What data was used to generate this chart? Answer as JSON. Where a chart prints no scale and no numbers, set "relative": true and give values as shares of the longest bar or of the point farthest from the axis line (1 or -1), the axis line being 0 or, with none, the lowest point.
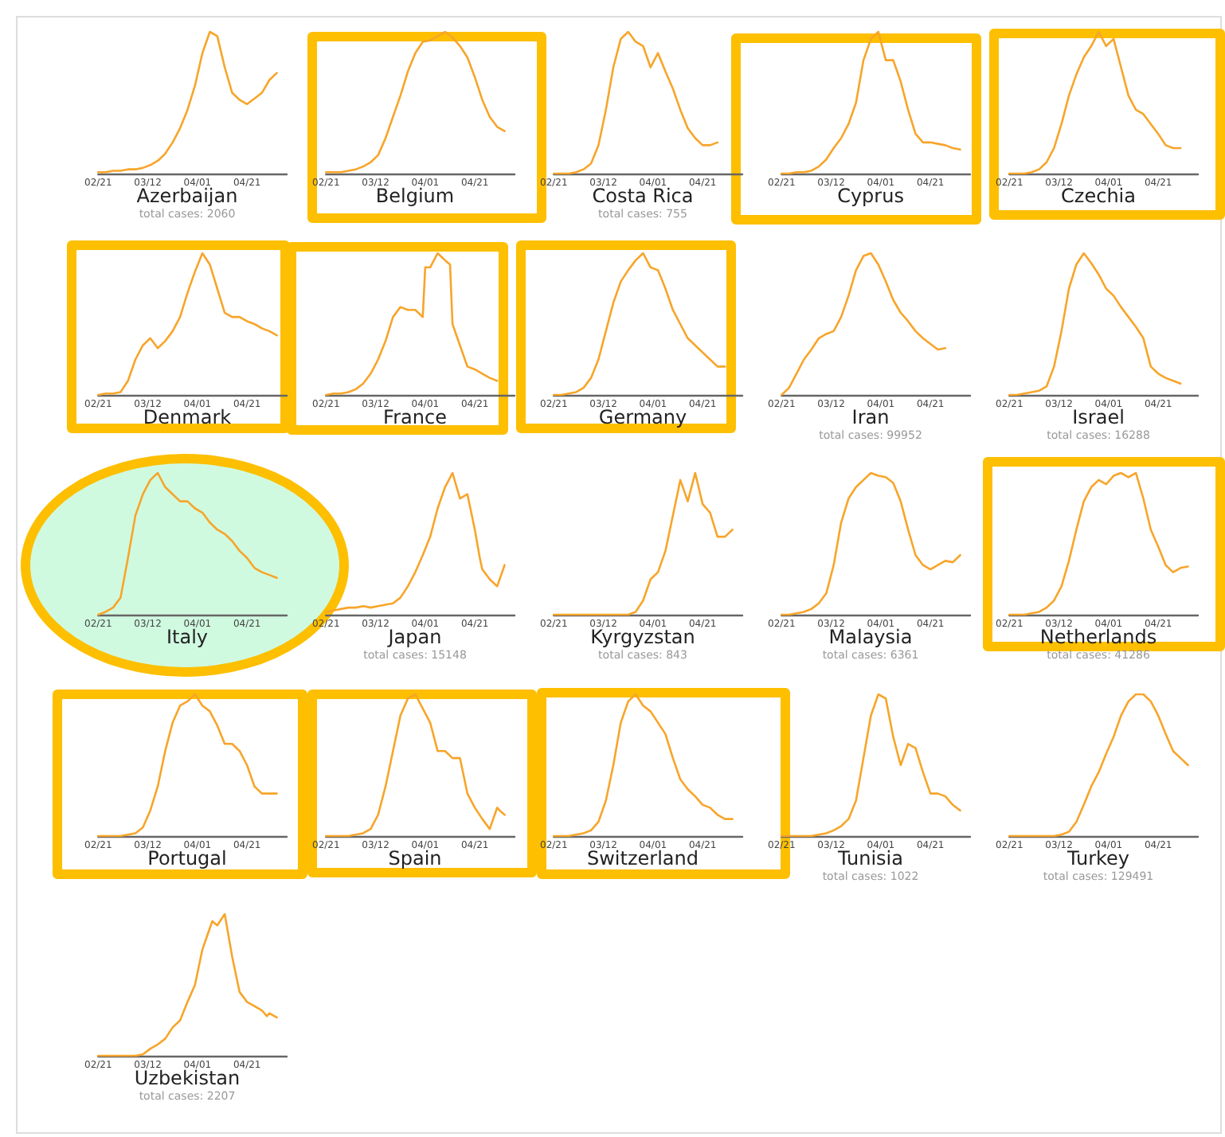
{
  "chart_data": [
    {
      "type": "line",
      "title": "Azerbaijan",
      "subtitle": "total cases: 2060",
      "relative": true,
      "tick_labels": "x",
      "xlim": [
        "--02-21",
        "--05-07"
      ],
      "xticks": [
        {
          "value": "--02-21",
          "label": "02/21"
        },
        {
          "value": "--03-12",
          "label": "03/12"
        },
        {
          "value": "--04-01",
          "label": "04/01"
        },
        {
          "value": "--04-21",
          "label": "04/21"
        }
      ],
      "color": "#f7a52a",
      "x": [
        "--02-21",
        "--02-24",
        "--02-27",
        "--03-01",
        "--03-04",
        "--03-07",
        "--03-10",
        "--03-13",
        "--03-16",
        "--03-19",
        "--03-22",
        "--03-25",
        "--03-28",
        "--03-31",
        "--04-03",
        "--04-06",
        "--04-09",
        "--04-12",
        "--04-15",
        "--04-18",
        "--04-21",
        "--04-24",
        "--04-27",
        "--04-30",
        "--05-03"
      ],
      "values": [
        0.01,
        0.01,
        0.02,
        0.02,
        0.03,
        0.03,
        0.04,
        0.06,
        0.09,
        0.14,
        0.22,
        0.32,
        0.45,
        0.62,
        0.85,
        1.0,
        0.97,
        0.75,
        0.57,
        0.52,
        0.49,
        0.53,
        0.57,
        0.66,
        0.71
      ]
    },
    {
      "type": "line",
      "title": "Belgium",
      "relative": true,
      "tick_labels": "x",
      "xlim": [
        "--02-21",
        "--05-07"
      ],
      "xticks": [
        {
          "value": "--02-21",
          "label": "02/21"
        },
        {
          "value": "--03-12",
          "label": "03/12"
        },
        {
          "value": "--04-01",
          "label": "04/01"
        },
        {
          "value": "--04-21",
          "label": "04/21"
        }
      ],
      "color": "#f7a52a",
      "x": [
        "--02-21",
        "--02-24",
        "--02-27",
        "--03-01",
        "--03-04",
        "--03-07",
        "--03-10",
        "--03-13",
        "--03-16",
        "--03-19",
        "--03-22",
        "--03-25",
        "--03-28",
        "--03-31",
        "--04-03",
        "--04-06",
        "--04-09",
        "--04-12",
        "--04-15",
        "--04-18",
        "--04-21",
        "--04-24",
        "--04-27",
        "--04-30",
        "--05-03"
      ],
      "values": [
        0.01,
        0.01,
        0.01,
        0.02,
        0.03,
        0.05,
        0.08,
        0.13,
        0.25,
        0.4,
        0.55,
        0.72,
        0.85,
        0.93,
        0.94,
        0.97,
        1.0,
        0.96,
        0.9,
        0.82,
        0.68,
        0.52,
        0.4,
        0.33,
        0.3
      ]
    },
    {
      "type": "line",
      "title": "Costa Rica",
      "subtitle": "total cases: 755",
      "relative": true,
      "tick_labels": "x",
      "xlim": [
        "--02-21",
        "--05-07"
      ],
      "xticks": [
        {
          "value": "--02-21",
          "label": "02/21"
        },
        {
          "value": "--03-12",
          "label": "03/12"
        },
        {
          "value": "--04-01",
          "label": "04/01"
        },
        {
          "value": "--04-21",
          "label": "04/21"
        }
      ],
      "color": "#f7a52a",
      "x": [
        "--02-21",
        "--02-24",
        "--02-27",
        "--03-01",
        "--03-04",
        "--03-07",
        "--03-10",
        "--03-13",
        "--03-16",
        "--03-19",
        "--03-22",
        "--03-25",
        "--03-28",
        "--03-31",
        "--04-03",
        "--04-06",
        "--04-09",
        "--04-12",
        "--04-15",
        "--04-18",
        "--04-21",
        "--04-24",
        "--04-27"
      ],
      "values": [
        0,
        0,
        0,
        0.01,
        0.03,
        0.07,
        0.2,
        0.45,
        0.75,
        0.95,
        1.0,
        0.93,
        0.9,
        0.75,
        0.85,
        0.72,
        0.6,
        0.45,
        0.32,
        0.25,
        0.2,
        0.2,
        0.22
      ]
    },
    {
      "type": "line",
      "title": "Cyprus",
      "relative": true,
      "tick_labels": "x",
      "xlim": [
        "--02-21",
        "--05-07"
      ],
      "xticks": [
        {
          "value": "--02-21",
          "label": "02/21"
        },
        {
          "value": "--03-12",
          "label": "03/12"
        },
        {
          "value": "--04-01",
          "label": "04/01"
        },
        {
          "value": "--04-21",
          "label": "04/21"
        }
      ],
      "color": "#f7a52a",
      "x": [
        "--02-21",
        "--02-24",
        "--02-27",
        "--03-01",
        "--03-04",
        "--03-07",
        "--03-10",
        "--03-13",
        "--03-16",
        "--03-19",
        "--03-22",
        "--03-25",
        "--03-28",
        "--03-31",
        "--04-03",
        "--04-06",
        "--04-09",
        "--04-12",
        "--04-15",
        "--04-18",
        "--04-21",
        "--04-24",
        "--04-27",
        "--04-30",
        "--05-03"
      ],
      "values": [
        0,
        0,
        0.01,
        0.01,
        0.02,
        0.05,
        0.1,
        0.18,
        0.25,
        0.35,
        0.5,
        0.8,
        0.95,
        1.0,
        0.8,
        0.8,
        0.65,
        0.45,
        0.28,
        0.22,
        0.22,
        0.21,
        0.2,
        0.18,
        0.17
      ]
    },
    {
      "type": "line",
      "title": "Czechia",
      "relative": true,
      "tick_labels": "x",
      "xlim": [
        "--02-21",
        "--05-07"
      ],
      "xticks": [
        {
          "value": "--02-21",
          "label": "02/21"
        },
        {
          "value": "--03-12",
          "label": "03/12"
        },
        {
          "value": "--04-01",
          "label": "04/01"
        },
        {
          "value": "--04-21",
          "label": "04/21"
        }
      ],
      "color": "#f7a52a",
      "x": [
        "--02-21",
        "--02-24",
        "--02-27",
        "--03-01",
        "--03-04",
        "--03-07",
        "--03-10",
        "--03-13",
        "--03-16",
        "--03-19",
        "--03-22",
        "--03-25",
        "--03-28",
        "--03-31",
        "--04-03",
        "--04-06",
        "--04-09",
        "--04-12",
        "--04-15",
        "--04-18",
        "--04-21",
        "--04-24",
        "--04-27",
        "--04-30"
      ],
      "values": [
        0,
        0,
        0,
        0.01,
        0.03,
        0.08,
        0.18,
        0.35,
        0.55,
        0.7,
        0.82,
        0.9,
        1.0,
        0.9,
        0.95,
        0.75,
        0.55,
        0.45,
        0.42,
        0.35,
        0.28,
        0.2,
        0.18,
        0.18
      ]
    },
    {
      "type": "line",
      "title": "Denmark",
      "relative": true,
      "tick_labels": "x",
      "xlim": [
        "--02-21",
        "--05-07"
      ],
      "xticks": [
        {
          "value": "--02-21",
          "label": "02/21"
        },
        {
          "value": "--03-12",
          "label": "03/12"
        },
        {
          "value": "--04-01",
          "label": "04/01"
        },
        {
          "value": "--04-21",
          "label": "04/21"
        }
      ],
      "color": "#f7a52a",
      "x": [
        "--02-21",
        "--02-24",
        "--02-27",
        "--03-01",
        "--03-04",
        "--03-07",
        "--03-10",
        "--03-13",
        "--03-16",
        "--03-19",
        "--03-22",
        "--03-25",
        "--03-28",
        "--03-31",
        "--04-03",
        "--04-06",
        "--04-09",
        "--04-12",
        "--04-15",
        "--04-18",
        "--04-21",
        "--04-24",
        "--04-27",
        "--04-30",
        "--05-03"
      ],
      "values": [
        0,
        0.01,
        0.01,
        0.02,
        0.1,
        0.25,
        0.35,
        0.4,
        0.33,
        0.38,
        0.45,
        0.55,
        0.72,
        0.87,
        1.0,
        0.92,
        0.75,
        0.58,
        0.55,
        0.55,
        0.52,
        0.5,
        0.47,
        0.45,
        0.42
      ]
    },
    {
      "type": "line",
      "title": "France",
      "relative": true,
      "tick_labels": "x",
      "xlim": [
        "--02-21",
        "--05-07"
      ],
      "xticks": [
        {
          "value": "--02-21",
          "label": "02/21"
        },
        {
          "value": "--03-12",
          "label": "03/12"
        },
        {
          "value": "--04-01",
          "label": "04/01"
        },
        {
          "value": "--04-21",
          "label": "04/21"
        }
      ],
      "color": "#f7a52a",
      "x": [
        "--02-21",
        "--02-24",
        "--02-27",
        "--03-01",
        "--03-04",
        "--03-07",
        "--03-10",
        "--03-13",
        "--03-16",
        "--03-19",
        "--03-22",
        "--03-25",
        "--03-28",
        "--03-31",
        "--04-01",
        "--04-03",
        "--04-06",
        "--04-09",
        "--04-11",
        "--04-12",
        "--04-15",
        "--04-18",
        "--04-21",
        "--04-24",
        "--04-27",
        "--04-30"
      ],
      "values": [
        0,
        0.01,
        0.01,
        0.02,
        0.04,
        0.08,
        0.15,
        0.25,
        0.38,
        0.55,
        0.62,
        0.6,
        0.6,
        0.55,
        0.9,
        0.9,
        1.0,
        0.95,
        0.92,
        0.5,
        0.35,
        0.2,
        0.18,
        0.15,
        0.12,
        0.1
      ]
    },
    {
      "type": "line",
      "title": "Germany",
      "relative": true,
      "tick_labels": "x",
      "xlim": [
        "--02-21",
        "--05-07"
      ],
      "xticks": [
        {
          "value": "--02-21",
          "label": "02/21"
        },
        {
          "value": "--03-12",
          "label": "03/12"
        },
        {
          "value": "--04-01",
          "label": "04/01"
        },
        {
          "value": "--04-21",
          "label": "04/21"
        }
      ],
      "color": "#f7a52a",
      "x": [
        "--02-21",
        "--02-24",
        "--02-27",
        "--03-01",
        "--03-04",
        "--03-07",
        "--03-10",
        "--03-13",
        "--03-16",
        "--03-19",
        "--03-22",
        "--03-25",
        "--03-28",
        "--03-31",
        "--04-03",
        "--04-06",
        "--04-09",
        "--04-12",
        "--04-15",
        "--04-18",
        "--04-21",
        "--04-24",
        "--04-27",
        "--04-30"
      ],
      "values": [
        0,
        0,
        0.01,
        0.02,
        0.05,
        0.12,
        0.25,
        0.45,
        0.65,
        0.8,
        0.88,
        0.95,
        1.0,
        0.9,
        0.88,
        0.75,
        0.6,
        0.5,
        0.4,
        0.35,
        0.3,
        0.25,
        0.2,
        0.2
      ]
    },
    {
      "type": "line",
      "title": "Iran",
      "subtitle": "total cases: 99952",
      "relative": true,
      "tick_labels": "x",
      "xlim": [
        "--02-21",
        "--05-07"
      ],
      "xticks": [
        {
          "value": "--02-21",
          "label": "02/21"
        },
        {
          "value": "--03-12",
          "label": "03/12"
        },
        {
          "value": "--04-01",
          "label": "04/01"
        },
        {
          "value": "--04-21",
          "label": "04/21"
        }
      ],
      "color": "#f7a52a",
      "x": [
        "--02-21",
        "--02-24",
        "--02-27",
        "--03-01",
        "--03-04",
        "--03-07",
        "--03-10",
        "--03-13",
        "--03-16",
        "--03-19",
        "--03-22",
        "--03-25",
        "--03-28",
        "--03-31",
        "--04-03",
        "--04-06",
        "--04-09",
        "--04-12",
        "--04-15",
        "--04-18",
        "--04-21",
        "--04-24",
        "--04-27"
      ],
      "values": [
        0,
        0.05,
        0.15,
        0.25,
        0.32,
        0.4,
        0.43,
        0.45,
        0.55,
        0.7,
        0.88,
        0.98,
        1.0,
        0.92,
        0.8,
        0.67,
        0.58,
        0.52,
        0.45,
        0.4,
        0.36,
        0.32,
        0.33
      ]
    },
    {
      "type": "line",
      "title": "Israel",
      "subtitle": "total cases: 16288",
      "relative": true,
      "tick_labels": "x",
      "xlim": [
        "--02-21",
        "--05-07"
      ],
      "xticks": [
        {
          "value": "--02-21",
          "label": "02/21"
        },
        {
          "value": "--03-12",
          "label": "03/12"
        },
        {
          "value": "--04-01",
          "label": "04/01"
        },
        {
          "value": "--04-21",
          "label": "04/21"
        }
      ],
      "color": "#f7a52a",
      "x": [
        "--02-21",
        "--02-24",
        "--02-27",
        "--03-01",
        "--03-04",
        "--03-07",
        "--03-10",
        "--03-13",
        "--03-16",
        "--03-19",
        "--03-22",
        "--03-25",
        "--03-28",
        "--03-31",
        "--04-03",
        "--04-06",
        "--04-09",
        "--04-12",
        "--04-15",
        "--04-18",
        "--04-21",
        "--04-24",
        "--04-27",
        "--04-30"
      ],
      "values": [
        0,
        0,
        0.01,
        0.02,
        0.03,
        0.06,
        0.2,
        0.45,
        0.75,
        0.92,
        1.0,
        0.93,
        0.85,
        0.75,
        0.7,
        0.62,
        0.55,
        0.48,
        0.4,
        0.2,
        0.15,
        0.12,
        0.1,
        0.08
      ]
    },
    {
      "type": "line",
      "title": "Italy",
      "relative": true,
      "tick_labels": "x",
      "xlim": [
        "--02-21",
        "--05-07"
      ],
      "xticks": [
        {
          "value": "--02-21",
          "label": "02/21"
        },
        {
          "value": "--03-12",
          "label": "03/12"
        },
        {
          "value": "--04-01",
          "label": "04/01"
        },
        {
          "value": "--04-21",
          "label": "04/21"
        }
      ],
      "color": "#f7a52a",
      "x": [
        "--02-21",
        "--02-24",
        "--02-27",
        "--03-01",
        "--03-04",
        "--03-07",
        "--03-10",
        "--03-13",
        "--03-16",
        "--03-19",
        "--03-22",
        "--03-25",
        "--03-28",
        "--03-31",
        "--04-03",
        "--04-06",
        "--04-09",
        "--04-12",
        "--04-15",
        "--04-18",
        "--04-21",
        "--04-24",
        "--04-27",
        "--04-30",
        "--05-03"
      ],
      "values": [
        0,
        0.02,
        0.05,
        0.12,
        0.4,
        0.7,
        0.85,
        0.95,
        1.0,
        0.9,
        0.85,
        0.8,
        0.8,
        0.75,
        0.72,
        0.65,
        0.6,
        0.57,
        0.52,
        0.45,
        0.4,
        0.33,
        0.3,
        0.28,
        0.26
      ]
    },
    {
      "type": "line",
      "title": "Japan",
      "subtitle": "total cases: 15148",
      "relative": true,
      "tick_labels": "x",
      "xlim": [
        "--02-21",
        "--05-07"
      ],
      "xticks": [
        {
          "value": "--02-21",
          "label": "02/21"
        },
        {
          "value": "--03-12",
          "label": "03/12"
        },
        {
          "value": "--04-01",
          "label": "04/01"
        },
        {
          "value": "--04-21",
          "label": "04/21"
        }
      ],
      "color": "#f7a52a",
      "x": [
        "--02-21",
        "--02-24",
        "--02-27",
        "--03-01",
        "--03-04",
        "--03-07",
        "--03-10",
        "--03-13",
        "--03-16",
        "--03-19",
        "--03-22",
        "--03-25",
        "--03-28",
        "--03-31",
        "--04-03",
        "--04-06",
        "--04-09",
        "--04-12",
        "--04-15",
        "--04-18",
        "--04-21",
        "--04-23",
        "--04-24",
        "--04-27",
        "--04-30",
        "--05-03"
      ],
      "values": [
        0.02,
        0.03,
        0.04,
        0.05,
        0.05,
        0.06,
        0.05,
        0.06,
        0.07,
        0.08,
        0.12,
        0.2,
        0.3,
        0.42,
        0.55,
        0.75,
        0.9,
        1.0,
        0.82,
        0.85,
        0.6,
        0.4,
        0.32,
        0.25,
        0.2,
        0.35
      ]
    },
    {
      "type": "line",
      "title": "Kyrgyzstan",
      "subtitle": "total cases: 843",
      "relative": true,
      "tick_labels": "x",
      "xlim": [
        "--02-21",
        "--05-07"
      ],
      "xticks": [
        {
          "value": "--02-21",
          "label": "02/21"
        },
        {
          "value": "--03-12",
          "label": "03/12"
        },
        {
          "value": "--04-01",
          "label": "04/01"
        },
        {
          "value": "--04-21",
          "label": "04/21"
        }
      ],
      "color": "#f7a52a",
      "x": [
        "--02-21",
        "--02-24",
        "--02-27",
        "--03-01",
        "--03-04",
        "--03-07",
        "--03-10",
        "--03-13",
        "--03-16",
        "--03-19",
        "--03-22",
        "--03-25",
        "--03-28",
        "--03-31",
        "--04-03",
        "--04-06",
        "--04-09",
        "--04-12",
        "--04-15",
        "--04-18",
        "--04-21",
        "--04-24",
        "--04-27",
        "--04-30",
        "--05-03"
      ],
      "values": [
        0,
        0,
        0,
        0,
        0,
        0,
        0,
        0,
        0,
        0,
        0,
        0.02,
        0.1,
        0.25,
        0.3,
        0.45,
        0.7,
        0.95,
        0.8,
        1.0,
        0.78,
        0.72,
        0.55,
        0.55,
        0.6
      ]
    },
    {
      "type": "line",
      "title": "Malaysia",
      "subtitle": "total cases: 6361",
      "relative": true,
      "tick_labels": "x",
      "xlim": [
        "--02-21",
        "--05-07"
      ],
      "xticks": [
        {
          "value": "--02-21",
          "label": "02/21"
        },
        {
          "value": "--03-12",
          "label": "03/12"
        },
        {
          "value": "--04-01",
          "label": "04/01"
        },
        {
          "value": "--04-21",
          "label": "04/21"
        }
      ],
      "color": "#f7a52a",
      "x": [
        "--02-21",
        "--02-24",
        "--02-27",
        "--03-01",
        "--03-04",
        "--03-07",
        "--03-10",
        "--03-13",
        "--03-16",
        "--03-19",
        "--03-22",
        "--03-25",
        "--03-28",
        "--03-31",
        "--04-03",
        "--04-06",
        "--04-09",
        "--04-12",
        "--04-15",
        "--04-18",
        "--04-21",
        "--04-24",
        "--04-27",
        "--04-30",
        "--05-03"
      ],
      "values": [
        0,
        0,
        0.01,
        0.02,
        0.04,
        0.08,
        0.15,
        0.35,
        0.65,
        0.82,
        0.9,
        0.95,
        1.0,
        0.98,
        0.97,
        0.93,
        0.8,
        0.6,
        0.42,
        0.35,
        0.32,
        0.35,
        0.38,
        0.37,
        0.42
      ]
    },
    {
      "type": "line",
      "title": "Netherlands",
      "subtitle": "total cases: 41286",
      "relative": true,
      "tick_labels": "x",
      "xlim": [
        "--02-21",
        "--05-07"
      ],
      "xticks": [
        {
          "value": "--02-21",
          "label": "02/21"
        },
        {
          "value": "--03-12",
          "label": "03/12"
        },
        {
          "value": "--04-01",
          "label": "04/01"
        },
        {
          "value": "--04-21",
          "label": "04/21"
        }
      ],
      "color": "#f7a52a",
      "x": [
        "--02-21",
        "--02-24",
        "--02-27",
        "--03-01",
        "--03-04",
        "--03-07",
        "--03-10",
        "--03-13",
        "--03-16",
        "--03-19",
        "--03-22",
        "--03-25",
        "--03-28",
        "--03-31",
        "--04-03",
        "--04-06",
        "--04-09",
        "--04-12",
        "--04-15",
        "--04-18",
        "--04-21",
        "--04-24",
        "--04-27",
        "--04-30",
        "--05-03"
      ],
      "values": [
        0,
        0,
        0,
        0.01,
        0.02,
        0.05,
        0.1,
        0.2,
        0.38,
        0.6,
        0.8,
        0.9,
        0.95,
        0.92,
        0.98,
        1.0,
        0.97,
        1.0,
        0.82,
        0.6,
        0.48,
        0.35,
        0.3,
        0.33,
        0.34
      ]
    },
    {
      "type": "line",
      "title": "Portugal",
      "relative": true,
      "tick_labels": "x",
      "xlim": [
        "--02-21",
        "--05-07"
      ],
      "xticks": [
        {
          "value": "--02-21",
          "label": "02/21"
        },
        {
          "value": "--03-12",
          "label": "03/12"
        },
        {
          "value": "--04-01",
          "label": "04/01"
        },
        {
          "value": "--04-21",
          "label": "04/21"
        }
      ],
      "color": "#f7a52a",
      "x": [
        "--02-21",
        "--02-24",
        "--02-27",
        "--03-01",
        "--03-04",
        "--03-07",
        "--03-10",
        "--03-13",
        "--03-16",
        "--03-19",
        "--03-22",
        "--03-25",
        "--03-28",
        "--03-31",
        "--04-03",
        "--04-06",
        "--04-09",
        "--04-12",
        "--04-15",
        "--04-18",
        "--04-21",
        "--04-24",
        "--04-27",
        "--04-30",
        "--05-03"
      ],
      "values": [
        0,
        0,
        0,
        0,
        0.01,
        0.02,
        0.06,
        0.18,
        0.35,
        0.6,
        0.8,
        0.92,
        0.95,
        1.0,
        0.92,
        0.88,
        0.78,
        0.65,
        0.65,
        0.6,
        0.5,
        0.35,
        0.3,
        0.3,
        0.3
      ]
    },
    {
      "type": "line",
      "title": "Spain",
      "relative": true,
      "tick_labels": "x",
      "xlim": [
        "--02-21",
        "--05-07"
      ],
      "xticks": [
        {
          "value": "--02-21",
          "label": "02/21"
        },
        {
          "value": "--03-12",
          "label": "03/12"
        },
        {
          "value": "--04-01",
          "label": "04/01"
        },
        {
          "value": "--04-21",
          "label": "04/21"
        }
      ],
      "color": "#f7a52a",
      "x": [
        "--02-21",
        "--02-24",
        "--02-27",
        "--03-01",
        "--03-04",
        "--03-07",
        "--03-10",
        "--03-13",
        "--03-16",
        "--03-19",
        "--03-22",
        "--03-25",
        "--03-28",
        "--03-31",
        "--04-03",
        "--04-06",
        "--04-09",
        "--04-12",
        "--04-15",
        "--04-18",
        "--04-21",
        "--04-24",
        "--04-27",
        "--04-30",
        "--05-01",
        "--05-03"
      ],
      "values": [
        0,
        0,
        0,
        0,
        0.01,
        0.02,
        0.05,
        0.15,
        0.35,
        0.6,
        0.85,
        0.97,
        1.0,
        0.9,
        0.8,
        0.6,
        0.6,
        0.55,
        0.55,
        0.3,
        0.2,
        0.12,
        0.05,
        0.2,
        0.18,
        0.15
      ]
    },
    {
      "type": "line",
      "title": "Switzerland",
      "relative": true,
      "tick_labels": "x",
      "xlim": [
        "--02-21",
        "--05-07"
      ],
      "xticks": [
        {
          "value": "--02-21",
          "label": "02/21"
        },
        {
          "value": "--03-12",
          "label": "03/12"
        },
        {
          "value": "--04-01",
          "label": "04/01"
        },
        {
          "value": "--04-21",
          "label": "04/21"
        }
      ],
      "color": "#f7a52a",
      "x": [
        "--02-21",
        "--02-24",
        "--02-27",
        "--03-01",
        "--03-04",
        "--03-07",
        "--03-10",
        "--03-13",
        "--03-16",
        "--03-19",
        "--03-22",
        "--03-25",
        "--03-28",
        "--03-31",
        "--04-03",
        "--04-06",
        "--04-09",
        "--04-12",
        "--04-15",
        "--04-18",
        "--04-21",
        "--04-24",
        "--04-27",
        "--04-30",
        "--05-03"
      ],
      "values": [
        0,
        0,
        0,
        0.01,
        0.02,
        0.04,
        0.1,
        0.25,
        0.5,
        0.8,
        0.95,
        1.0,
        0.92,
        0.88,
        0.8,
        0.72,
        0.55,
        0.4,
        0.33,
        0.28,
        0.22,
        0.2,
        0.15,
        0.12,
        0.12
      ]
    },
    {
      "type": "line",
      "title": "Tunisia",
      "subtitle": "total cases: 1022",
      "relative": true,
      "tick_labels": "x",
      "xlim": [
        "--02-21",
        "--05-07"
      ],
      "xticks": [
        {
          "value": "--02-21",
          "label": "02/21"
        },
        {
          "value": "--03-12",
          "label": "03/12"
        },
        {
          "value": "--04-01",
          "label": "04/01"
        },
        {
          "value": "--04-21",
          "label": "04/21"
        }
      ],
      "color": "#f7a52a",
      "x": [
        "--02-21",
        "--02-24",
        "--02-27",
        "--03-01",
        "--03-04",
        "--03-07",
        "--03-10",
        "--03-13",
        "--03-16",
        "--03-19",
        "--03-22",
        "--03-25",
        "--03-28",
        "--03-31",
        "--04-03",
        "--04-06",
        "--04-09",
        "--04-12",
        "--04-15",
        "--04-18",
        "--04-21",
        "--04-24",
        "--04-27",
        "--04-30",
        "--05-03"
      ],
      "values": [
        0,
        0,
        0,
        0,
        0,
        0.01,
        0.02,
        0.04,
        0.07,
        0.12,
        0.25,
        0.55,
        0.85,
        1.0,
        0.97,
        0.7,
        0.5,
        0.65,
        0.62,
        0.45,
        0.3,
        0.3,
        0.28,
        0.22,
        0.18
      ]
    },
    {
      "type": "line",
      "title": "Turkey",
      "subtitle": "total cases: 129491",
      "relative": true,
      "tick_labels": "x",
      "xlim": [
        "--02-21",
        "--05-07"
      ],
      "xticks": [
        {
          "value": "--02-21",
          "label": "02/21"
        },
        {
          "value": "--03-12",
          "label": "03/12"
        },
        {
          "value": "--04-01",
          "label": "04/01"
        },
        {
          "value": "--04-21",
          "label": "04/21"
        }
      ],
      "color": "#f7a52a",
      "x": [
        "--02-21",
        "--02-24",
        "--02-27",
        "--03-01",
        "--03-04",
        "--03-07",
        "--03-10",
        "--03-13",
        "--03-16",
        "--03-19",
        "--03-22",
        "--03-25",
        "--03-28",
        "--03-31",
        "--04-03",
        "--04-06",
        "--04-09",
        "--04-12",
        "--04-15",
        "--04-18",
        "--04-21",
        "--04-24",
        "--04-27",
        "--04-30",
        "--05-03"
      ],
      "values": [
        0,
        0,
        0,
        0,
        0,
        0,
        0,
        0.01,
        0.03,
        0.1,
        0.22,
        0.35,
        0.45,
        0.58,
        0.7,
        0.85,
        0.95,
        1.0,
        1.0,
        0.95,
        0.85,
        0.72,
        0.6,
        0.55,
        0.5
      ]
    },
    {
      "type": "line",
      "title": "Uzbekistan",
      "subtitle": "total cases: 2207",
      "relative": true,
      "tick_labels": "x",
      "xlim": [
        "--02-21",
        "--05-07"
      ],
      "xticks": [
        {
          "value": "--02-21",
          "label": "02/21"
        },
        {
          "value": "--03-12",
          "label": "03/12"
        },
        {
          "value": "--04-01",
          "label": "04/01"
        },
        {
          "value": "--04-21",
          "label": "04/21"
        }
      ],
      "color": "#f7a52a",
      "x": [
        "--02-21",
        "--02-24",
        "--02-27",
        "--03-01",
        "--03-04",
        "--03-07",
        "--03-10",
        "--03-13",
        "--03-16",
        "--03-19",
        "--03-22",
        "--03-25",
        "--03-28",
        "--03-31",
        "--04-03",
        "--04-06",
        "--04-07",
        "--04-09",
        "--04-12",
        "--04-15",
        "--04-18",
        "--04-21",
        "--04-24",
        "--04-27",
        "--04-29",
        "--04-30",
        "--05-03"
      ],
      "values": [
        0,
        0,
        0,
        0,
        0,
        0,
        0.01,
        0.05,
        0.08,
        0.12,
        0.2,
        0.25,
        0.38,
        0.5,
        0.75,
        0.9,
        0.95,
        0.92,
        1.0,
        0.7,
        0.45,
        0.38,
        0.35,
        0.32,
        0.28,
        0.3,
        0.27
      ]
    }
  ]
}
